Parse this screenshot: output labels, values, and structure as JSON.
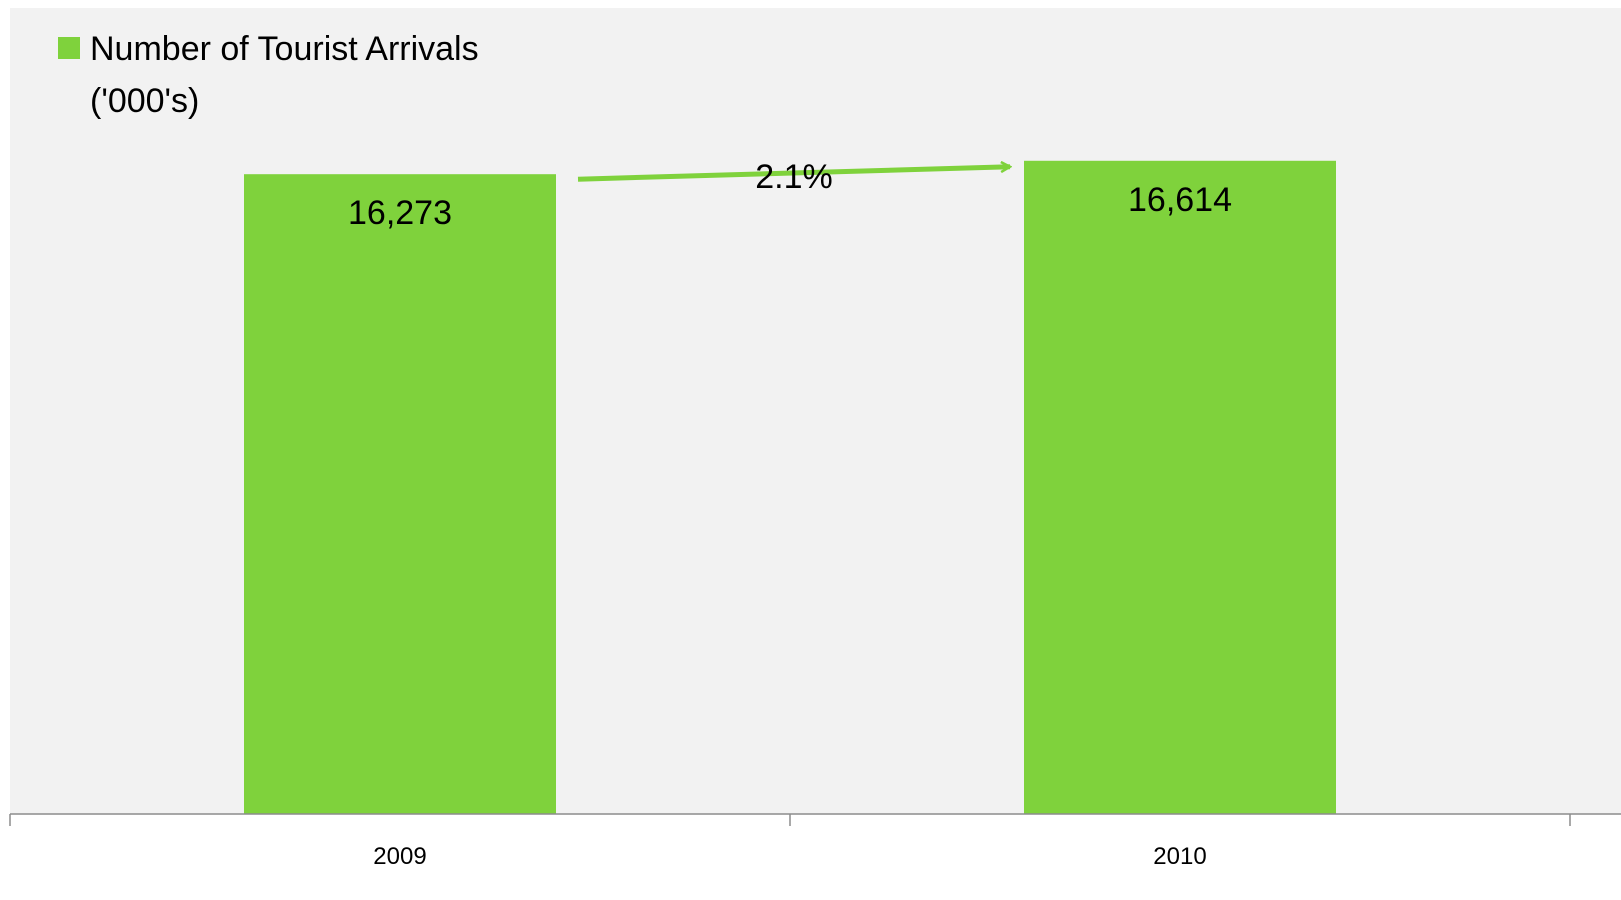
{
  "chart_data": {
    "type": "bar",
    "categories": [
      "2009",
      "2010"
    ],
    "series": [
      {
        "name": "Number of Tourist Arrivals ('000's)",
        "values": [
          16273,
          16614
        ]
      }
    ],
    "data_labels": [
      "16,273",
      "16,614"
    ],
    "legend": {
      "line1": "Number of Tourist Arrivals",
      "line2": "('000's)",
      "placement": "top-left"
    },
    "annotation": {
      "text": "2.1%",
      "from": "2009",
      "to": "2010"
    },
    "bar_color": "#7fd23c",
    "plot_background": "#f2f2f2",
    "ylim": [
      0,
      20500
    ],
    "grid": false
  }
}
